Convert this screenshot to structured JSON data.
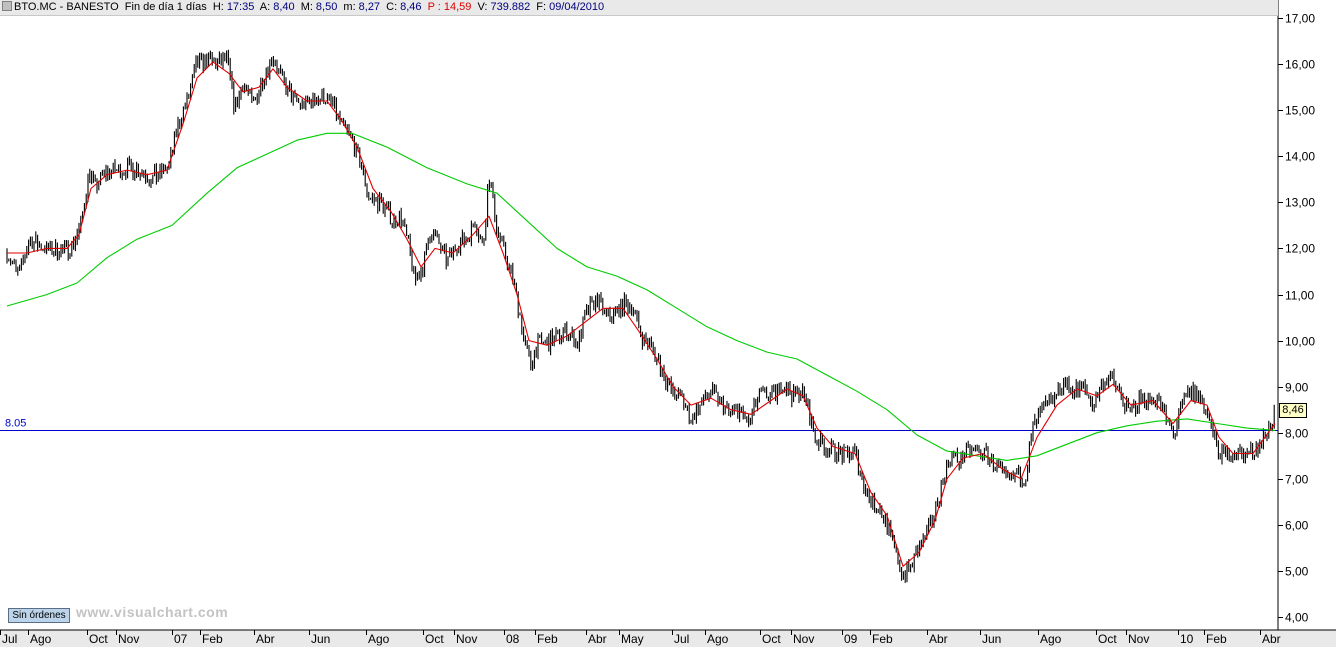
{
  "header": {
    "symbol": "BTO.MC - BANESTO",
    "period": "Fin de día 1 días",
    "h_label": "H:",
    "h_value": "17:35",
    "a_label": "A:",
    "a_value": "8,40",
    "m_label": "M:",
    "m_value": "8,50",
    "mm_label": "m:",
    "mm_value": "8,27",
    "c_label": "C:",
    "c_value": "8,46",
    "p_label": "P :",
    "p_value": "14,59",
    "v_label": "V:",
    "v_value": "739.882",
    "f_label": "F:",
    "f_value": "09/04/2010"
  },
  "button_sin_ordenes": "Sin órdenes",
  "watermark": "www.visualchart.com",
  "price_tag": "8,46",
  "hline_label": "8.05",
  "colors": {
    "price": "#000000",
    "ma_short": "#e00000",
    "ma_long": "#00cc00",
    "hline": "#0000cc",
    "grid": "#b0b0b0"
  },
  "chart_data": {
    "type": "line",
    "ylim": [
      4.0,
      17.0
    ],
    "y_ticks": [
      "4,00",
      "5,00",
      "6,00",
      "7,00",
      "8,00",
      "9,00",
      "10,00",
      "11,00",
      "12,00",
      "13,00",
      "14,00",
      "15,00",
      "16,00",
      "17,00"
    ],
    "x_labels": [
      "Jul",
      "Ago",
      "Oct",
      "Nov",
      "07",
      "Feb",
      "Abr",
      "Jun",
      "Ago",
      "Oct",
      "Nov",
      "08",
      "Feb",
      "Abr",
      "May",
      "Jul",
      "Ago",
      "Oct",
      "Nov",
      "09",
      "Feb",
      "Abr",
      "Jun",
      "Ago",
      "Oct",
      "Nov",
      "10",
      "Feb",
      "Abr"
    ],
    "horizontal_line": 8.05,
    "last_price": 8.46,
    "series": [
      {
        "kind": "price",
        "points": [
          [
            0,
            11.9
          ],
          [
            12,
            11.4
          ],
          [
            22,
            12.2
          ],
          [
            38,
            12.0
          ],
          [
            58,
            11.95
          ],
          [
            66,
            12.1
          ],
          [
            74,
            12.5
          ],
          [
            82,
            13.7
          ],
          [
            88,
            13.3
          ],
          [
            96,
            13.6
          ],
          [
            104,
            13.7
          ],
          [
            116,
            13.7
          ],
          [
            126,
            13.75
          ],
          [
            136,
            13.7
          ],
          [
            142,
            13.5
          ],
          [
            152,
            13.6
          ],
          [
            162,
            13.8
          ],
          [
            170,
            14.6
          ],
          [
            180,
            15.2
          ],
          [
            190,
            16.0
          ],
          [
            200,
            16.1
          ],
          [
            210,
            16.0
          ],
          [
            220,
            16.1
          ],
          [
            228,
            15.0
          ],
          [
            236,
            15.6
          ],
          [
            246,
            15.1
          ],
          [
            256,
            15.7
          ],
          [
            266,
            16.2
          ],
          [
            276,
            15.6
          ],
          [
            284,
            15.3
          ],
          [
            294,
            15.1
          ],
          [
            304,
            15.2
          ],
          [
            316,
            15.3
          ],
          [
            326,
            15.1
          ],
          [
            334,
            14.7
          ],
          [
            344,
            14.4
          ],
          [
            354,
            13.8
          ],
          [
            362,
            13.1
          ],
          [
            374,
            13.0
          ],
          [
            386,
            12.6
          ],
          [
            394,
            12.7
          ],
          [
            402,
            12.0
          ],
          [
            408,
            11.3
          ],
          [
            416,
            11.6
          ],
          [
            424,
            12.4
          ],
          [
            432,
            12.1
          ],
          [
            440,
            11.7
          ],
          [
            450,
            12.1
          ],
          [
            460,
            12.2
          ],
          [
            468,
            12.6
          ],
          [
            476,
            12.0
          ],
          [
            482,
            13.6
          ],
          [
            490,
            12.4
          ],
          [
            498,
            11.9
          ],
          [
            506,
            11.3
          ],
          [
            512,
            10.7
          ],
          [
            518,
            9.9
          ],
          [
            524,
            9.5
          ],
          [
            530,
            9.9
          ],
          [
            538,
            9.95
          ],
          [
            546,
            10.0
          ],
          [
            554,
            10.15
          ],
          [
            562,
            10.2
          ],
          [
            570,
            9.9
          ],
          [
            580,
            10.6
          ],
          [
            590,
            10.9
          ],
          [
            600,
            10.5
          ],
          [
            608,
            10.6
          ],
          [
            618,
            10.8
          ],
          [
            626,
            10.7
          ],
          [
            634,
            10.1
          ],
          [
            644,
            9.9
          ],
          [
            654,
            9.4
          ],
          [
            664,
            8.9
          ],
          [
            674,
            8.8
          ],
          [
            684,
            8.3
          ],
          [
            694,
            8.6
          ],
          [
            704,
            8.9
          ],
          [
            712,
            8.7
          ],
          [
            722,
            8.4
          ],
          [
            732,
            8.5
          ],
          [
            742,
            8.2
          ],
          [
            752,
            8.8
          ],
          [
            760,
            8.8
          ],
          [
            768,
            8.8
          ],
          [
            776,
            9.1
          ],
          [
            786,
            8.8
          ],
          [
            794,
            8.9
          ],
          [
            800,
            8.6
          ],
          [
            808,
            7.9
          ],
          [
            818,
            7.7
          ],
          [
            828,
            7.6
          ],
          [
            838,
            7.5
          ],
          [
            848,
            7.6
          ],
          [
            856,
            6.9
          ],
          [
            864,
            6.5
          ],
          [
            872,
            6.4
          ],
          [
            880,
            6.0
          ],
          [
            888,
            5.4
          ],
          [
            896,
            4.9
          ],
          [
            904,
            5.1
          ],
          [
            912,
            5.5
          ],
          [
            920,
            5.8
          ],
          [
            928,
            6.3
          ],
          [
            936,
            7.0
          ],
          [
            944,
            7.5
          ],
          [
            952,
            7.4
          ],
          [
            960,
            7.6
          ],
          [
            970,
            7.6
          ],
          [
            980,
            7.5
          ],
          [
            990,
            7.3
          ],
          [
            1000,
            6.9
          ],
          [
            1010,
            7.1
          ],
          [
            1018,
            7.0
          ],
          [
            1026,
            8.1
          ],
          [
            1036,
            8.5
          ],
          [
            1046,
            8.7
          ],
          [
            1056,
            9.1
          ],
          [
            1066,
            8.9
          ],
          [
            1076,
            9.0
          ],
          [
            1086,
            8.6
          ],
          [
            1096,
            9.1
          ],
          [
            1104,
            9.2
          ],
          [
            1112,
            8.9
          ],
          [
            1122,
            8.4
          ],
          [
            1132,
            8.7
          ],
          [
            1142,
            8.75
          ],
          [
            1152,
            8.7
          ],
          [
            1160,
            8.2
          ],
          [
            1168,
            8.0
          ],
          [
            1176,
            8.7
          ],
          [
            1184,
            8.9
          ],
          [
            1192,
            8.8
          ],
          [
            1200,
            8.4
          ],
          [
            1208,
            7.8
          ],
          [
            1216,
            7.45
          ],
          [
            1226,
            7.6
          ],
          [
            1236,
            7.5
          ],
          [
            1246,
            7.6
          ],
          [
            1254,
            7.8
          ],
          [
            1262,
            8.1
          ],
          [
            1268,
            8.46
          ]
        ]
      },
      {
        "kind": "ma_short",
        "points": [
          [
            0,
            11.9
          ],
          [
            20,
            11.9
          ],
          [
            40,
            12.0
          ],
          [
            60,
            12.0
          ],
          [
            72,
            12.3
          ],
          [
            84,
            13.3
          ],
          [
            100,
            13.6
          ],
          [
            120,
            13.7
          ],
          [
            140,
            13.6
          ],
          [
            160,
            13.7
          ],
          [
            176,
            14.7
          ],
          [
            190,
            15.7
          ],
          [
            206,
            16.05
          ],
          [
            222,
            15.8
          ],
          [
            236,
            15.4
          ],
          [
            252,
            15.5
          ],
          [
            266,
            15.9
          ],
          [
            280,
            15.5
          ],
          [
            300,
            15.2
          ],
          [
            320,
            15.2
          ],
          [
            334,
            14.8
          ],
          [
            350,
            14.2
          ],
          [
            366,
            13.3
          ],
          [
            384,
            12.8
          ],
          [
            400,
            12.2
          ],
          [
            414,
            11.6
          ],
          [
            428,
            12.0
          ],
          [
            446,
            11.9
          ],
          [
            466,
            12.3
          ],
          [
            482,
            12.7
          ],
          [
            496,
            11.9
          ],
          [
            510,
            11.0
          ],
          [
            522,
            10.0
          ],
          [
            540,
            9.9
          ],
          [
            560,
            10.1
          ],
          [
            578,
            10.4
          ],
          [
            596,
            10.7
          ],
          [
            616,
            10.7
          ],
          [
            632,
            10.2
          ],
          [
            650,
            9.6
          ],
          [
            666,
            9.0
          ],
          [
            684,
            8.6
          ],
          [
            704,
            8.75
          ],
          [
            724,
            8.5
          ],
          [
            744,
            8.4
          ],
          [
            764,
            8.7
          ],
          [
            780,
            8.95
          ],
          [
            796,
            8.8
          ],
          [
            810,
            8.1
          ],
          [
            826,
            7.7
          ],
          [
            848,
            7.55
          ],
          [
            864,
            6.7
          ],
          [
            880,
            6.2
          ],
          [
            896,
            5.1
          ],
          [
            912,
            5.4
          ],
          [
            928,
            6.1
          ],
          [
            940,
            7.0
          ],
          [
            956,
            7.45
          ],
          [
            976,
            7.55
          ],
          [
            996,
            7.2
          ],
          [
            1014,
            7.0
          ],
          [
            1030,
            7.9
          ],
          [
            1050,
            8.6
          ],
          [
            1070,
            8.95
          ],
          [
            1090,
            8.8
          ],
          [
            1106,
            9.05
          ],
          [
            1124,
            8.6
          ],
          [
            1146,
            8.7
          ],
          [
            1166,
            8.2
          ],
          [
            1184,
            8.7
          ],
          [
            1200,
            8.6
          ],
          [
            1212,
            7.9
          ],
          [
            1226,
            7.55
          ],
          [
            1246,
            7.55
          ],
          [
            1268,
            8.2
          ]
        ]
      },
      {
        "kind": "ma_long",
        "points": [
          [
            0,
            10.75
          ],
          [
            40,
            11.0
          ],
          [
            70,
            11.25
          ],
          [
            100,
            11.8
          ],
          [
            130,
            12.2
          ],
          [
            165,
            12.5
          ],
          [
            200,
            13.2
          ],
          [
            230,
            13.75
          ],
          [
            260,
            14.05
          ],
          [
            290,
            14.35
          ],
          [
            320,
            14.5
          ],
          [
            345,
            14.5
          ],
          [
            380,
            14.2
          ],
          [
            420,
            13.75
          ],
          [
            460,
            13.4
          ],
          [
            490,
            13.2
          ],
          [
            520,
            12.6
          ],
          [
            550,
            12.0
          ],
          [
            580,
            11.6
          ],
          [
            610,
            11.4
          ],
          [
            640,
            11.1
          ],
          [
            670,
            10.7
          ],
          [
            700,
            10.3
          ],
          [
            730,
            10.0
          ],
          [
            760,
            9.75
          ],
          [
            790,
            9.6
          ],
          [
            820,
            9.25
          ],
          [
            850,
            8.9
          ],
          [
            880,
            8.5
          ],
          [
            910,
            7.95
          ],
          [
            940,
            7.6
          ],
          [
            970,
            7.5
          ],
          [
            1000,
            7.4
          ],
          [
            1030,
            7.5
          ],
          [
            1060,
            7.75
          ],
          [
            1090,
            8.0
          ],
          [
            1120,
            8.15
          ],
          [
            1150,
            8.25
          ],
          [
            1180,
            8.3
          ],
          [
            1210,
            8.2
          ],
          [
            1240,
            8.1
          ],
          [
            1268,
            8.05
          ]
        ]
      }
    ]
  }
}
